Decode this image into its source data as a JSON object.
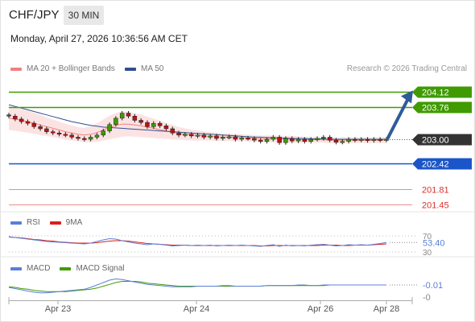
{
  "header": {
    "symbol": "CHF/JPY",
    "interval": "30 MIN",
    "datetime": "Monday, April 27, 2026 10:36:56 AM CET"
  },
  "legend": {
    "ma20_bb": "MA 20 + Bollinger Bands",
    "ma50": "MA 50",
    "credit": "Research © 2026 Trading Central"
  },
  "colors": {
    "bollinger": "#f4a0a0",
    "ma50": "#2f4f8f",
    "green_level": "#3f9b00",
    "blue_level": "#1a56c9",
    "red_level": "#d93030",
    "price_tag": "#333333",
    "candle_up": "#3f9b00",
    "candle_down": "#c01010",
    "rsi": "#5b7fd6",
    "rsi_ma": "#d92020",
    "macd": "#5b7fd6",
    "macd_signal": "#3f9b00",
    "arrow": "#2f5b9a"
  },
  "chart_data": [
    {
      "type": "candlestick",
      "title": "",
      "x_ticks": [
        "Apr 23",
        "Apr 24",
        "Apr 26",
        "Apr 28"
      ],
      "ylim": [
        201.3,
        204.3
      ],
      "levels": [
        {
          "label": "204.12",
          "value": 204.12,
          "kind": "resistance",
          "color": "green",
          "tag": "filled"
        },
        {
          "label": "203.76",
          "value": 203.76,
          "kind": "resistance",
          "color": "green",
          "tag": "filled"
        },
        {
          "label": "203.00",
          "value": 203.0,
          "kind": "last-price",
          "color": "dark",
          "tag": "filled"
        },
        {
          "label": "202.42",
          "value": 202.42,
          "kind": "pivot",
          "color": "blue",
          "tag": "filled"
        },
        {
          "label": "201.81",
          "value": 201.81,
          "kind": "support",
          "color": "red",
          "tag": "text"
        },
        {
          "label": "201.45",
          "value": 201.45,
          "kind": "support",
          "color": "red",
          "tag": "text"
        }
      ],
      "series": [
        {
          "name": "MA 20 + Bollinger Bands"
        },
        {
          "name": "MA 50"
        }
      ],
      "close": [
        203.55,
        203.48,
        203.42,
        203.38,
        203.3,
        203.25,
        203.18,
        203.15,
        203.12,
        203.1,
        203.05,
        203.02,
        203.0,
        203.05,
        203.1,
        203.2,
        203.35,
        203.5,
        203.62,
        203.55,
        203.45,
        203.4,
        203.3,
        203.38,
        203.32,
        203.25,
        203.15,
        203.1,
        203.12,
        203.08,
        203.1,
        203.05,
        203.08,
        203.02,
        203.05,
        203.06,
        203.0,
        203.03,
        203.02,
        202.98,
        202.95,
        203.0,
        203.05,
        202.92,
        203.02,
        202.96,
        203.0,
        202.95,
        203.0,
        203.02,
        203.05,
        202.98,
        202.93,
        202.95,
        203.0,
        202.98,
        203.0,
        202.97,
        203.0,
        202.98,
        203.0
      ],
      "ma20": [
        203.5,
        203.48,
        203.45,
        203.42,
        203.38,
        203.34,
        203.3,
        203.26,
        203.22,
        203.18,
        203.15,
        203.12,
        203.1,
        203.12,
        203.16,
        203.22,
        203.28,
        203.33,
        203.36,
        203.36,
        203.34,
        203.32,
        203.29,
        203.26,
        203.23,
        203.2,
        203.17,
        203.14,
        203.12,
        203.1,
        203.09,
        203.08,
        203.07,
        203.06,
        203.05,
        203.05,
        203.04,
        203.04,
        203.03,
        203.02,
        203.01,
        203.01,
        203.01,
        203.0,
        203.0,
        203.0,
        202.99,
        202.99,
        202.99,
        202.99,
        202.99,
        202.98,
        202.98,
        202.98,
        202.98,
        202.98,
        202.98,
        202.98,
        202.98,
        202.98,
        202.98
      ],
      "ma50": [
        203.82,
        203.78,
        203.74,
        203.7,
        203.66,
        203.62,
        203.58,
        203.54,
        203.5,
        203.46,
        203.42,
        203.39,
        203.36,
        203.33,
        203.31,
        203.29,
        203.28,
        203.27,
        203.26,
        203.25,
        203.24,
        203.23,
        203.22,
        203.21,
        203.2,
        203.19,
        203.18,
        203.17,
        203.16,
        203.15,
        203.14,
        203.13,
        203.12,
        203.11,
        203.1,
        203.09,
        203.08,
        203.07,
        203.06,
        203.05,
        203.05,
        203.04,
        203.04,
        203.03,
        203.03,
        203.02,
        203.02,
        203.02,
        203.01,
        203.01,
        203.01,
        203.0,
        203.0,
        203.0,
        203.0,
        203.0,
        203.0,
        203.0,
        203.0,
        203.0,
        203.0
      ],
      "bb_width": [
        0.28,
        0.28,
        0.27,
        0.26,
        0.25,
        0.24,
        0.22,
        0.21,
        0.2,
        0.19,
        0.18,
        0.17,
        0.17,
        0.19,
        0.22,
        0.25,
        0.28,
        0.3,
        0.3,
        0.29,
        0.28,
        0.27,
        0.25,
        0.23,
        0.21,
        0.19,
        0.17,
        0.15,
        0.14,
        0.13,
        0.12,
        0.11,
        0.1,
        0.1,
        0.09,
        0.09,
        0.09,
        0.08,
        0.08,
        0.08,
        0.08,
        0.08,
        0.08,
        0.08,
        0.08,
        0.08,
        0.08,
        0.07,
        0.07,
        0.07,
        0.07,
        0.07,
        0.07,
        0.07,
        0.07,
        0.07,
        0.07,
        0.07,
        0.07,
        0.07,
        0.07
      ],
      "forecast_arrow": {
        "from": 203.0,
        "to": 204.12
      }
    },
    {
      "type": "line",
      "title": "RSI",
      "series": [
        {
          "name": "RSI"
        },
        {
          "name": "9MA"
        }
      ],
      "y_ticks": [
        "70",
        "30"
      ],
      "last_value": "53.40",
      "ylim": [
        20,
        80
      ],
      "rsi": [
        68,
        66,
        64,
        62,
        60,
        58,
        56,
        55,
        54,
        53,
        52,
        51,
        50,
        52,
        56,
        60,
        63,
        62,
        58,
        55,
        52,
        50,
        48,
        50,
        49,
        47,
        45,
        46,
        47,
        46,
        47,
        46,
        47,
        45,
        46,
        47,
        46,
        47,
        46,
        45,
        44,
        46,
        48,
        44,
        47,
        45,
        46,
        45,
        47,
        48,
        49,
        47,
        45,
        46,
        48,
        47,
        48,
        47,
        49,
        51,
        53.4
      ],
      "rsi_ma": [
        67,
        66,
        65,
        63,
        61,
        60,
        58,
        57,
        55,
        54,
        53,
        52,
        52,
        52,
        53,
        55,
        57,
        58,
        58,
        57,
        55,
        53,
        51,
        50,
        49,
        48,
        47,
        47,
        47,
        46,
        46,
        46,
        46,
        46,
        46,
        46,
        46,
        46,
        46,
        46,
        45,
        45,
        46,
        46,
        46,
        46,
        46,
        46,
        46,
        46,
        47,
        47,
        47,
        46,
        46,
        47,
        47,
        47,
        48,
        49,
        50
      ]
    },
    {
      "type": "line",
      "title": "MACD",
      "series": [
        {
          "name": "MACD"
        },
        {
          "name": "MACD Signal"
        }
      ],
      "y_ticks": [
        "-0"
      ],
      "last_value": "-0.01",
      "ylim": [
        -0.25,
        0.15
      ],
      "macd": [
        -0.05,
        -0.07,
        -0.09,
        -0.11,
        -0.13,
        -0.14,
        -0.14,
        -0.13,
        -0.12,
        -0.11,
        -0.1,
        -0.09,
        -0.08,
        -0.05,
        -0.01,
        0.03,
        0.07,
        0.09,
        0.08,
        0.06,
        0.04,
        0.02,
        0.0,
        -0.01,
        -0.02,
        -0.03,
        -0.04,
        -0.04,
        -0.04,
        -0.04,
        -0.03,
        -0.03,
        -0.03,
        -0.03,
        -0.02,
        -0.02,
        -0.03,
        -0.03,
        -0.03,
        -0.03,
        -0.03,
        -0.02,
        -0.02,
        -0.02,
        -0.02,
        -0.02,
        -0.01,
        -0.01,
        -0.02,
        -0.02,
        -0.01,
        -0.01,
        -0.01,
        -0.01,
        -0.01,
        -0.01,
        -0.01,
        -0.01,
        -0.01,
        -0.01,
        -0.01
      ],
      "signal": [
        -0.04,
        -0.05,
        -0.07,
        -0.08,
        -0.1,
        -0.11,
        -0.12,
        -0.12,
        -0.12,
        -0.12,
        -0.11,
        -0.1,
        -0.09,
        -0.08,
        -0.06,
        -0.03,
        0.0,
        0.03,
        0.05,
        0.05,
        0.05,
        0.04,
        0.02,
        0.01,
        0.0,
        -0.01,
        -0.02,
        -0.03,
        -0.03,
        -0.03,
        -0.03,
        -0.03,
        -0.03,
        -0.03,
        -0.03,
        -0.03,
        -0.03,
        -0.03,
        -0.03,
        -0.03,
        -0.03,
        -0.02,
        -0.02,
        -0.02,
        -0.02,
        -0.02,
        -0.02,
        -0.02,
        -0.02,
        -0.02,
        -0.02,
        -0.01,
        -0.01,
        -0.01,
        -0.01,
        -0.01,
        -0.01,
        -0.01,
        -0.01,
        -0.01,
        -0.01
      ]
    }
  ]
}
